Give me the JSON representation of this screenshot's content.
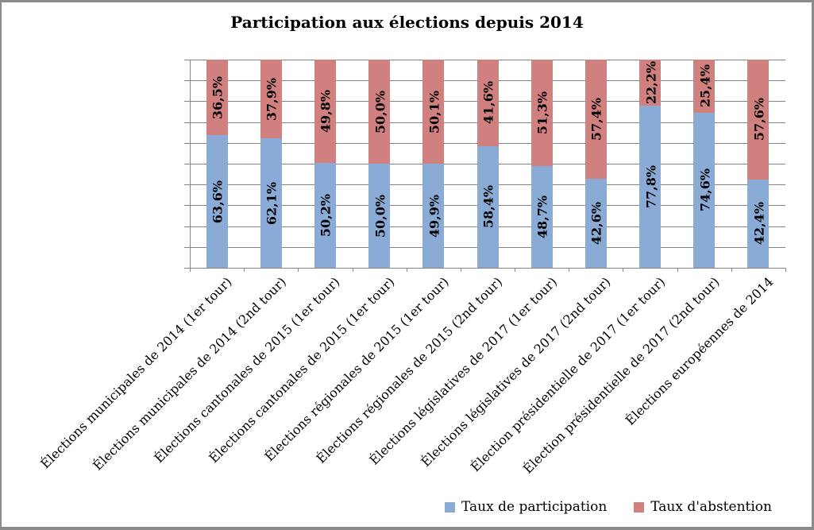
{
  "chart_data": {
    "type": "bar",
    "stacked": true,
    "title": "Participation aux élections depuis 2014",
    "categories": [
      "Élections municipales de 2014 (1er tour)",
      "Élections municipales de 2014 (2nd tour)",
      "Élections cantonales de 2015 (1er tour)",
      "Élections cantonales de 2015 (1er tour)",
      "Élections régionales de 2015 (1er tour)",
      "Élections régionales de 2015 (2nd tour)",
      "Élections législatives de 2017 (1er tour)",
      "Élections législatives de 2017 (2nd tour)",
      "Élection présidentielle de 2017 (1er tour)",
      "Élection présidentielle de 2017 (2nd tour)",
      "Élections européennes de 2014"
    ],
    "series": [
      {
        "name": "Taux de participation",
        "color": "#8AABD5",
        "values": [
          63.6,
          62.1,
          50.2,
          50.0,
          49.9,
          58.4,
          48.7,
          42.6,
          77.8,
          74.6,
          42.4
        ]
      },
      {
        "name": "Taux d'abstention",
        "color": "#D0807E",
        "values": [
          36.5,
          37.9,
          49.8,
          50.0,
          50.1,
          41.6,
          51.3,
          57.4,
          22.2,
          25.4,
          57.6
        ]
      }
    ],
    "value_label_format": "one_decimal_comma_percent",
    "xlabel": "",
    "ylabel": "",
    "ylim": [
      0,
      100
    ],
    "grid": {
      "on": true,
      "interval": 10,
      "color": "#848484"
    },
    "legend_position": "bottom-right",
    "y_tick_labels_visible": false
  },
  "colors": {
    "frame_border": "#8B8B8B",
    "background": "#FFFFFF",
    "label_text": "#000000"
  }
}
